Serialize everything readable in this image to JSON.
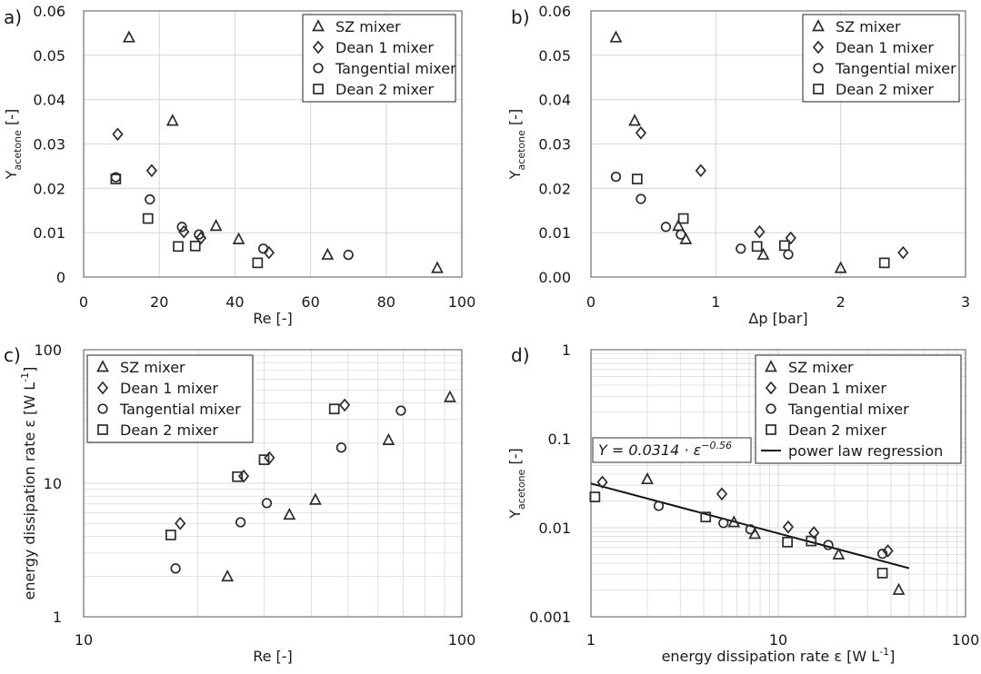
{
  "markers": {
    "SZ mixer": "triangle",
    "Dean 1 mixer": "diamond",
    "Tangential mixer": "circle",
    "Dean 2 mixer": "square"
  },
  "colors": {
    "marker_stroke": "#2b2b2b",
    "grid": "#d9d9d9",
    "axes": "#555555"
  },
  "chart_data": [
    {
      "panel": "a)",
      "type": "scatter",
      "xlabel": "Re [-]",
      "ylabel": "Y",
      "ylabel_sub": "acetone",
      "ylabel_unit": " [-]",
      "xscale": "linear",
      "yscale": "linear",
      "xlim": [
        0,
        100
      ],
      "ylim": [
        0,
        0.06
      ],
      "xticks": [
        0,
        20,
        40,
        60,
        80,
        100
      ],
      "yticks": [
        0,
        0.01,
        0.02,
        0.03,
        0.04,
        0.05,
        0.06
      ],
      "xtick_labels": [
        "0",
        "20",
        "40",
        "60",
        "80",
        "100"
      ],
      "ytick_labels": [
        "0",
        "0.01",
        "0.02",
        "0.03",
        "0.04",
        "0.05",
        "0.06"
      ],
      "grid": true,
      "legend_position": "top-right",
      "series": [
        {
          "name": "SZ mixer",
          "points": [
            [
              12,
              0.054
            ],
            [
              23.5,
              0.0352
            ],
            [
              35,
              0.0115
            ],
            [
              41,
              0.0085
            ],
            [
              64.5,
              0.005
            ],
            [
              93.5,
              0.002
            ]
          ]
        },
        {
          "name": "Dean 1 mixer",
          "points": [
            [
              9,
              0.0322
            ],
            [
              18,
              0.024
            ],
            [
              26.5,
              0.0102
            ],
            [
              31,
              0.0088
            ],
            [
              49,
              0.0055
            ]
          ]
        },
        {
          "name": "Tangential mixer",
          "points": [
            [
              8.5,
              0.0225
            ],
            [
              17.5,
              0.0175
            ],
            [
              26,
              0.0113
            ],
            [
              30.5,
              0.0096
            ],
            [
              47.5,
              0.0064
            ],
            [
              70,
              0.005
            ]
          ]
        },
        {
          "name": "Dean 2 mixer",
          "points": [
            [
              8.5,
              0.0221
            ],
            [
              17,
              0.0132
            ],
            [
              25,
              0.0069
            ],
            [
              29.5,
              0.007
            ],
            [
              46,
              0.0032
            ]
          ]
        }
      ]
    },
    {
      "panel": "b)",
      "type": "scatter",
      "xlabel": "Δp [bar]",
      "ylabel": "Y",
      "ylabel_sub": "acetone",
      "ylabel_unit": " [-]",
      "xscale": "linear",
      "yscale": "linear",
      "xlim": [
        0,
        3
      ],
      "ylim": [
        0,
        0.06
      ],
      "xticks": [
        0,
        1,
        2,
        3
      ],
      "yticks": [
        0,
        0.01,
        0.02,
        0.03,
        0.04,
        0.05,
        0.06
      ],
      "xtick_labels": [
        "0",
        "1",
        "2",
        "3"
      ],
      "ytick_labels": [
        "0.00",
        "0.01",
        "0.02",
        "0.03",
        "0.04",
        "0.05",
        "0.06"
      ],
      "grid": true,
      "legend_position": "top-right",
      "series": [
        {
          "name": "SZ mixer",
          "points": [
            [
              0.2,
              0.054
            ],
            [
              0.35,
              0.0352
            ],
            [
              0.7,
              0.0115
            ],
            [
              0.76,
              0.0085
            ],
            [
              1.38,
              0.005
            ],
            [
              2,
              0.002
            ]
          ]
        },
        {
          "name": "Dean 1 mixer",
          "points": [
            [
              0.4,
              0.0325
            ],
            [
              0.88,
              0.024
            ],
            [
              1.35,
              0.0102
            ],
            [
              1.6,
              0.0088
            ],
            [
              2.5,
              0.0055
            ]
          ]
        },
        {
          "name": "Tangential mixer",
          "points": [
            [
              0.2,
              0.0226
            ],
            [
              0.4,
              0.0176
            ],
            [
              0.6,
              0.0113
            ],
            [
              0.72,
              0.0096
            ],
            [
              1.2,
              0.0064
            ],
            [
              1.58,
              0.0051
            ]
          ]
        },
        {
          "name": "Dean 2 mixer",
          "points": [
            [
              0.37,
              0.0221
            ],
            [
              0.74,
              0.0132
            ],
            [
              1.33,
              0.0069
            ],
            [
              1.55,
              0.0071
            ],
            [
              2.35,
              0.0032
            ]
          ]
        }
      ]
    },
    {
      "panel": "c)",
      "type": "scatter",
      "xlabel": "Re [-]",
      "ylabel": "energy dissipation rate ε [W L",
      "ylabel_sup": "-1",
      "ylabel_tail": "]",
      "xscale": "log",
      "yscale": "log",
      "xlim": [
        10,
        100
      ],
      "ylim": [
        1,
        100
      ],
      "xticks": [
        10,
        100
      ],
      "yticks": [
        1,
        10,
        100
      ],
      "xtick_labels": [
        "10",
        "100"
      ],
      "ytick_labels": [
        "1",
        "10",
        "100"
      ],
      "grid": true,
      "legend_position": "top-left",
      "series": [
        {
          "name": "SZ mixer",
          "points": [
            [
              24,
              2
            ],
            [
              35,
              5.8
            ],
            [
              41,
              7.5
            ],
            [
              64,
              21
            ],
            [
              93,
              44
            ]
          ]
        },
        {
          "name": "Dean 1 mixer",
          "points": [
            [
              18,
              5
            ],
            [
              26.5,
              11.3
            ],
            [
              31,
              15.5
            ],
            [
              49,
              38.5
            ]
          ]
        },
        {
          "name": "Tangential mixer",
          "points": [
            [
              17.5,
              2.3
            ],
            [
              26,
              5.1
            ],
            [
              30.5,
              7.1
            ],
            [
              48,
              18.5
            ],
            [
              69,
              35
            ]
          ]
        },
        {
          "name": "Dean 2 mixer",
          "points": [
            [
              17,
              4.1
            ],
            [
              25.5,
              11.2
            ],
            [
              30,
              15
            ],
            [
              46,
              36
            ]
          ]
        }
      ]
    },
    {
      "panel": "d)",
      "type": "scatter",
      "xlabel": "energy dissipation rate ε [W L",
      "xlabel_sup": "-1",
      "xlabel_tail": "]",
      "ylabel": "Y",
      "ylabel_sub": "acetone",
      "ylabel_unit": " [-]",
      "xscale": "log",
      "yscale": "log",
      "xlim": [
        1,
        100
      ],
      "ylim": [
        0.001,
        1
      ],
      "xticks": [
        1,
        10,
        100
      ],
      "yticks": [
        0.001,
        0.01,
        0.1,
        1
      ],
      "xtick_labels": [
        "1",
        "10",
        "100"
      ],
      "ytick_labels": [
        "0.001",
        "0.01",
        "0.1",
        "1"
      ],
      "grid": true,
      "legend_position": "top-right",
      "equation": "Y = 0.0314 · ε",
      "equation_exponent": "−0.56",
      "regression": {
        "name": "power law regression",
        "a": 0.0314,
        "b": -0.56,
        "x_range": [
          1,
          50
        ]
      },
      "series": [
        {
          "name": "SZ mixer",
          "points": [
            [
              2,
              0.035
            ],
            [
              5.8,
              0.0115
            ],
            [
              7.5,
              0.0085
            ],
            [
              21,
              0.005
            ],
            [
              44,
              0.002
            ]
          ]
        },
        {
          "name": "Dean 1 mixer",
          "points": [
            [
              1.15,
              0.0325
            ],
            [
              5,
              0.024
            ],
            [
              11.3,
              0.0102
            ],
            [
              15.5,
              0.0088
            ],
            [
              38.5,
              0.0055
            ]
          ]
        },
        {
          "name": "Tangential mixer",
          "points": [
            [
              2.3,
              0.0176
            ],
            [
              5.1,
              0.0113
            ],
            [
              7.1,
              0.0096
            ],
            [
              18.5,
              0.0064
            ],
            [
              36,
              0.0051
            ]
          ]
        },
        {
          "name": "Dean 2 mixer",
          "points": [
            [
              1.05,
              0.0222
            ],
            [
              4.1,
              0.0132
            ],
            [
              11.2,
              0.0069
            ],
            [
              15,
              0.0071
            ],
            [
              36,
              0.0031
            ]
          ]
        }
      ]
    }
  ]
}
